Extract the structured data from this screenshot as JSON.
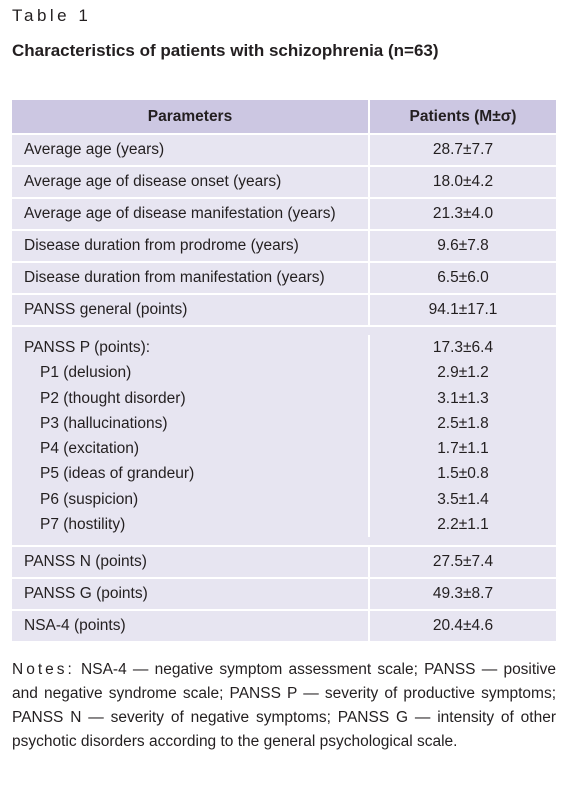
{
  "header": {
    "label": "Table 1",
    "title": "Characteristics of patients with schizophrenia (n=63)"
  },
  "table": {
    "columns": [
      "Parameters",
      "Patients (M±σ)"
    ],
    "rows": [
      {
        "parameter": "Average age (years)",
        "value": "28.7±7.7"
      },
      {
        "parameter": "Average age of disease onset (years)",
        "value": "18.0±4.2"
      },
      {
        "parameter": "Average age of disease manifestation (years)",
        "value": "21.3±4.0"
      },
      {
        "parameter": "Disease duration from prodrome (years)",
        "value": "9.6±7.8"
      },
      {
        "parameter": "Disease duration from manifestation (years)",
        "value": "6.5±6.0"
      },
      {
        "parameter": "PANSS general (points)",
        "value": "94.1±17.1"
      },
      {
        "parameter": "PANSS P (points):",
        "value": "17.3±6.4",
        "subrows": [
          {
            "parameter": "P1 (delusion)",
            "value": "2.9±1.2"
          },
          {
            "parameter": "P2 (thought disorder)",
            "value": "3.1±1.3"
          },
          {
            "parameter": "P3 (hallucinations)",
            "value": "2.5±1.8"
          },
          {
            "parameter": "P4 (excitation)",
            "value": "1.7±1.1"
          },
          {
            "parameter": "P5 (ideas of grandeur)",
            "value": "1.5±0.8"
          },
          {
            "parameter": "P6 (suspicion)",
            "value": "3.5±1.4"
          },
          {
            "parameter": "P7 (hostility)",
            "value": "2.2±1.1"
          }
        ]
      },
      {
        "parameter": "PANSS N (points)",
        "value": "27.5±7.4"
      },
      {
        "parameter": "PANSS G (points)",
        "value": "49.3±8.7"
      },
      {
        "parameter": "NSA-4 (points)",
        "value": "20.4±4.6"
      }
    ]
  },
  "notes": {
    "label": "Notes:",
    "text": "NSA-4 — negative symptom assessment scale; PANSS — positive and negative syndrome scale; PANSS P — severity of productive symptoms; PANSS N — severity of negative symptoms; PANSS G — intensity of other psychotic disorders according to the general psychological scale."
  }
}
